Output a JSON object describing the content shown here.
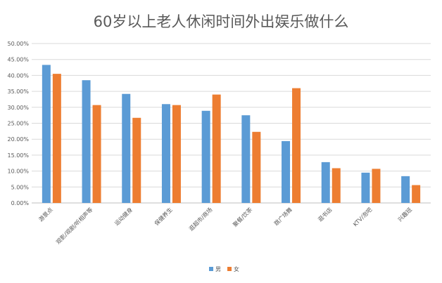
{
  "chart_data": {
    "type": "bar",
    "title": "60岁以上老人休闲时间外出娱乐做什么",
    "xlabel": "",
    "ylabel": "",
    "ylim": [
      0,
      50
    ],
    "y_tick_labels": [
      "0.00%",
      "5.00%",
      "10.00%",
      "15.00%",
      "20.00%",
      "25.00%",
      "30.00%",
      "35.00%",
      "40.00%",
      "45.00%",
      "50.00%"
    ],
    "grid": true,
    "legend_position": "bottom",
    "categories": [
      "游景点",
      "观影/观剧/听相声等",
      "运动健身",
      "保健养生",
      "逛超市/商场",
      "聚餐/饮茶",
      "跳广场舞",
      "逛书店",
      "KTV/泡吧",
      "兴趣班"
    ],
    "series": [
      {
        "name": "男",
        "color": "#5B9BD5",
        "values": [
          43.3,
          38.5,
          34.2,
          31.0,
          28.9,
          27.5,
          19.4,
          12.8,
          9.5,
          8.4
        ]
      },
      {
        "name": "女",
        "color": "#ED7D31",
        "values": [
          40.5,
          30.7,
          26.7,
          30.7,
          34.0,
          22.3,
          36.0,
          10.9,
          10.7,
          5.6
        ]
      }
    ]
  }
}
